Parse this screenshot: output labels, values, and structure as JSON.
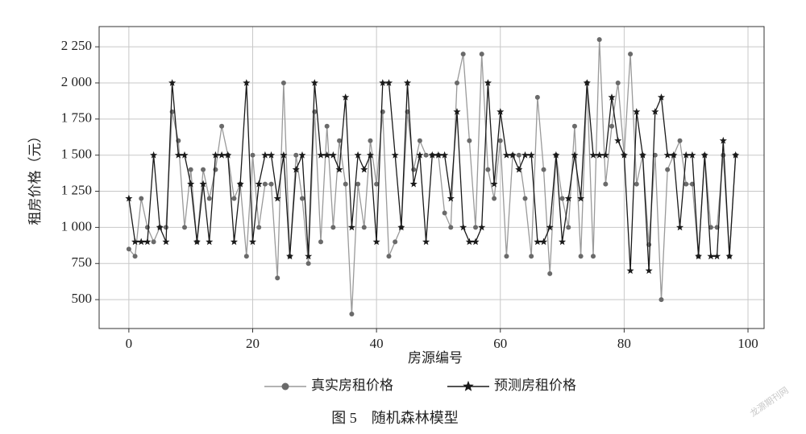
{
  "chart_data": {
    "type": "line",
    "caption": "图 5　随机森林模型",
    "xlabel": "房源编号",
    "ylabel": "租房价格（元）",
    "watermark": "龙源期刊网",
    "x": [
      0,
      1,
      2,
      3,
      4,
      5,
      6,
      7,
      8,
      9,
      10,
      11,
      12,
      13,
      14,
      15,
      16,
      17,
      18,
      19,
      20,
      21,
      22,
      23,
      24,
      25,
      26,
      27,
      28,
      29,
      30,
      31,
      32,
      33,
      34,
      35,
      36,
      37,
      38,
      39,
      40,
      41,
      42,
      43,
      44,
      45,
      46,
      47,
      48,
      49,
      50,
      51,
      52,
      53,
      54,
      55,
      56,
      57,
      58,
      59,
      60,
      61,
      62,
      63,
      64,
      65,
      66,
      67,
      68,
      69,
      70,
      71,
      72,
      73,
      74,
      75,
      76,
      77,
      78,
      79,
      80,
      81,
      82,
      83,
      84,
      85,
      86,
      87,
      88,
      89,
      90,
      91,
      92,
      93,
      94,
      95,
      96,
      97,
      98
    ],
    "series": [
      {
        "name": "真实房租价格",
        "color": "#9a9a9a",
        "marker_color": "#6a6a6a",
        "marker": "circle",
        "values": [
          850,
          800,
          1200,
          1000,
          900,
          1000,
          1000,
          1800,
          1600,
          1000,
          1400,
          900,
          1400,
          1200,
          1400,
          1700,
          1500,
          1200,
          1300,
          800,
          1500,
          1000,
          1300,
          1300,
          650,
          2000,
          800,
          1500,
          1200,
          750,
          1800,
          900,
          1700,
          1000,
          1600,
          1300,
          400,
          1300,
          1000,
          1600,
          1300,
          1800,
          800,
          900,
          1000,
          1800,
          1400,
          1600,
          1500,
          1500,
          1500,
          1100,
          1000,
          2000,
          2200,
          1600,
          1000,
          2200,
          1400,
          1200,
          1600,
          800,
          1500,
          1500,
          1200,
          800,
          1900,
          1400,
          680,
          1500,
          1200,
          1000,
          1700,
          800,
          2000,
          800,
          2300,
          1300,
          1700,
          2000,
          1500,
          2200,
          1300,
          1500,
          880,
          1500,
          500,
          1400,
          1500,
          1600,
          1300,
          1300,
          800,
          1500,
          1000,
          1000,
          1500,
          800,
          1500
        ]
      },
      {
        "name": "预测房租价格",
        "color": "#1a1a1a",
        "marker_color": "#1a1a1a",
        "marker": "star",
        "values": [
          1200,
          900,
          900,
          900,
          1500,
          1000,
          900,
          2000,
          1500,
          1500,
          1300,
          900,
          1300,
          900,
          1500,
          1500,
          1500,
          900,
          1300,
          2000,
          900,
          1300,
          1500,
          1500,
          1200,
          1500,
          800,
          1400,
          1500,
          800,
          2000,
          1500,
          1500,
          1500,
          1400,
          1900,
          1000,
          1500,
          1400,
          1500,
          900,
          2000,
          2000,
          1500,
          1000,
          2000,
          1300,
          1500,
          900,
          1500,
          1500,
          1500,
          1200,
          1800,
          1000,
          900,
          900,
          1000,
          2000,
          1300,
          1800,
          1500,
          1500,
          1400,
          1500,
          1500,
          900,
          900,
          1000,
          1500,
          900,
          1200,
          1500,
          1200,
          2000,
          1500,
          1500,
          1500,
          1900,
          1600,
          1500,
          700,
          1800,
          1500,
          700,
          1800,
          1900,
          1500,
          1500,
          1000,
          1500,
          1500,
          800,
          1500,
          800,
          800,
          1600,
          800,
          1500
        ]
      }
    ],
    "xlim": [
      -4.8,
      102.6
    ],
    "ylim": [
      300,
      2390
    ],
    "xticks": [
      0,
      20,
      40,
      60,
      80,
      100
    ],
    "yticks": [
      500,
      750,
      {
        "value": 1000,
        "label": "1 000"
      },
      {
        "value": 1250,
        "label": "1 250"
      },
      {
        "value": 1500,
        "label": "1 500"
      },
      {
        "value": 1750,
        "label": "1 750"
      },
      {
        "value": 2000,
        "label": "2 000"
      },
      {
        "value": 2250,
        "label": "2 250"
      }
    ],
    "grid": true,
    "legend": "bottom"
  }
}
